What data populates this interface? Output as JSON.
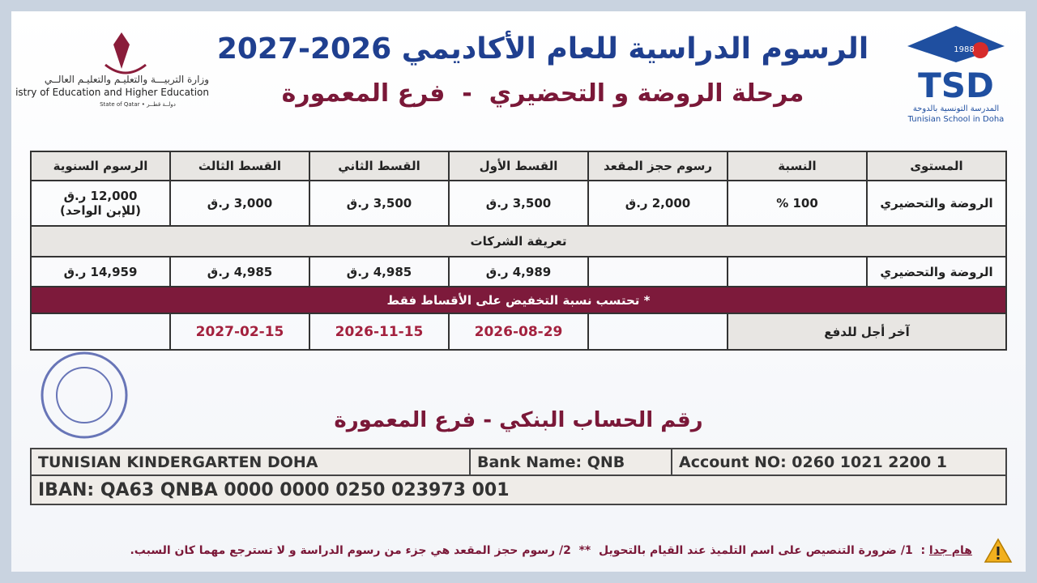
{
  "header": {
    "title": "الرسوم الدراسية للعام الأكاديمي 2026-2027",
    "subtitle": "مرحلة الروضة و التحضيري  -  فرع المعمورة"
  },
  "ministry": {
    "arabic": "وزارة التربيـــة والتعليـم والتعليـم العالــي",
    "english": "Ministry of Education and Higher Education",
    "state": "State of Qatar • دولــة قطــر"
  },
  "school": {
    "year": "1988",
    "acronym": "TSD",
    "arabic": "المدرسة التونسية بالدوحة",
    "english": "Tunisian School in Doha"
  },
  "table": {
    "headers": [
      "المستوى",
      "النسبة",
      "رسوم حجز المقعد",
      "القسط الأول",
      "القسط الثاني",
      "القسط الثالث",
      "الرسوم السنوية"
    ],
    "rows": [
      [
        "الروضة والتحضيري",
        "100 %",
        "2,000 ر.ق",
        "3,500 ر.ق",
        "3,500 ر.ق",
        "3,000 ر.ق",
        "12,000 ر.ق"
      ]
    ],
    "annual_note": "(للإبن الواحد)",
    "section": "تعريفة الشركات",
    "company_row": {
      "level": "الروضة والتحضيري",
      "first": "4,989 ر.ق",
      "second": "4,985 ر.ق",
      "third": "4,985 ر.ق",
      "annual": "14,959 ر.ق"
    },
    "note": "* تحتسب نسبة التخفيض على الأقساط فقط",
    "deadline": {
      "label": "آخر أجل للدفع",
      "dates": [
        "2026-08-29",
        "2026-11-15",
        "2027-02-15"
      ]
    }
  },
  "bank": {
    "title": "رقم الحساب البنكي - فرع المعمورة",
    "name": "TUNISIAN KINDERGARTEN DOHA",
    "bank_name": "Bank Name: QNB",
    "account": "Account NO: 0260 1021 2200 1",
    "iban": "IBAN: QA63 QNBA 0000 0000 0250 023973 001"
  },
  "footer": {
    "label": "هام جدا",
    "separator": ":",
    "text": "1/ ضرورة التنصيص على اسم التلميذ عند القيام بالتحويل  **  2/ رسوم حجز المقعد هي جزء من رسوم الدراسة و لا تسترجع مهما كان السبب."
  }
}
